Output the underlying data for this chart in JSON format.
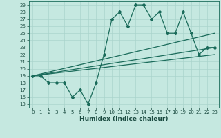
{
  "xlabel": "Humidex (Indice chaleur)",
  "bg_color": "#c5e8e0",
  "line_color": "#1a6b5a",
  "grid_color": "#aad4cc",
  "xlim": [
    -0.5,
    23.5
  ],
  "ylim": [
    14.5,
    29.5
  ],
  "xticks": [
    0,
    1,
    2,
    3,
    4,
    5,
    6,
    7,
    8,
    9,
    10,
    11,
    12,
    13,
    14,
    15,
    16,
    17,
    18,
    19,
    20,
    21,
    22,
    23
  ],
  "yticks": [
    15,
    16,
    17,
    18,
    19,
    20,
    21,
    22,
    23,
    24,
    25,
    26,
    27,
    28,
    29
  ],
  "line1_x": [
    0,
    1,
    2,
    3,
    4,
    5,
    6,
    7,
    8,
    9,
    10,
    11,
    12,
    13,
    14,
    15,
    16,
    17,
    18,
    19,
    20,
    21,
    22,
    23
  ],
  "line1_y": [
    19,
    19,
    18,
    18,
    18,
    16,
    17,
    15,
    18,
    22,
    27,
    28,
    26,
    29,
    29,
    27,
    28,
    25,
    25,
    28,
    25,
    22,
    23,
    23
  ],
  "line2_x": [
    0,
    23
  ],
  "line2_y": [
    19,
    25
  ],
  "line3_x": [
    0,
    23
  ],
  "line3_y": [
    19,
    23
  ],
  "line4_x": [
    0,
    23
  ],
  "line4_y": [
    19,
    22
  ],
  "marker": "D",
  "markersize": 2.0,
  "linewidth": 0.9,
  "font_color": "#1a4a40",
  "xlabel_fontsize": 6.5,
  "tick_fontsize": 5.0
}
